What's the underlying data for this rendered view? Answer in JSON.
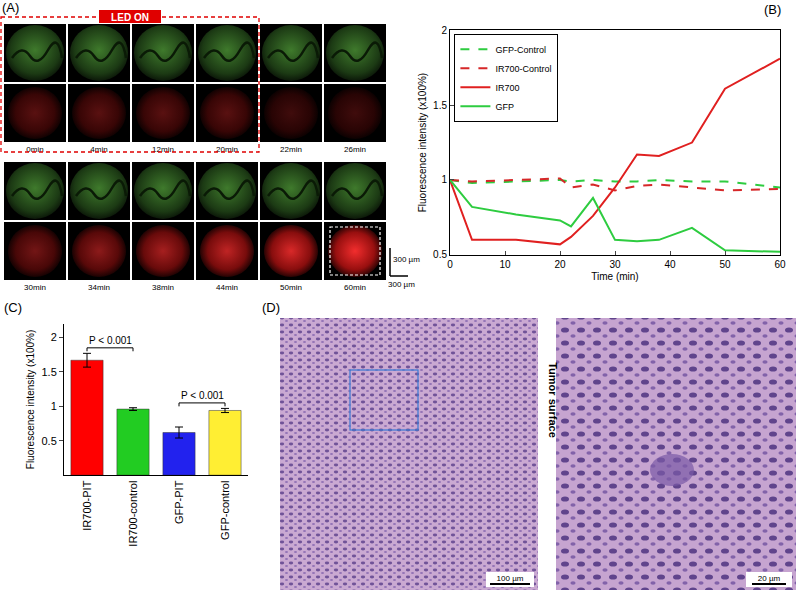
{
  "panel_labels": {
    "A": "(A)",
    "B": "(B)",
    "C": "(C)",
    "D": "(D)"
  },
  "image_panel_A": {
    "banner": "LED ON",
    "rows": [
      [
        "0min",
        "4min",
        "12min",
        "20min",
        "22min",
        "26min"
      ],
      [
        "30min",
        "34min",
        "38min",
        "44min",
        "50min",
        "60min"
      ]
    ],
    "scale_bar": [
      "300 µm",
      "300 µm"
    ]
  },
  "image_panel_D": {
    "side_label": "Tumor surface",
    "scale_bars": [
      "100 µm",
      "20 µm"
    ]
  },
  "chart_data": [
    {
      "type": "line",
      "xlabel": "Time (min)",
      "ylabel": "Fluorescence intensity (x100%)",
      "x": [
        0,
        4,
        12,
        20,
        22,
        26,
        30,
        34,
        38,
        44,
        50,
        60
      ],
      "series": [
        {
          "name": "GFP-Control",
          "color": "#2ecc40",
          "line_style": "dashed",
          "values": [
            1.0,
            0.98,
            0.99,
            1.0,
            0.99,
            1.0,
            0.99,
            0.99,
            1.0,
            0.99,
            0.99,
            0.95
          ]
        },
        {
          "name": "IR700-Control",
          "color": "#d62728",
          "line_style": "dashed",
          "values": [
            1.0,
            0.99,
            1.0,
            1.01,
            0.95,
            0.97,
            0.93,
            0.96,
            0.97,
            0.95,
            0.93,
            0.94
          ]
        },
        {
          "name": "IR700",
          "color": "#e02020",
          "line_style": "solid",
          "values": [
            1.0,
            0.6,
            0.6,
            0.57,
            0.62,
            0.76,
            0.95,
            1.17,
            1.16,
            1.25,
            1.61,
            1.81
          ]
        },
        {
          "name": "GFP",
          "color": "#2ecc40",
          "line_style": "solid",
          "values": [
            1.0,
            0.82,
            0.77,
            0.73,
            0.69,
            0.88,
            0.6,
            0.59,
            0.6,
            0.68,
            0.53,
            0.52
          ]
        }
      ],
      "xlim": [
        0,
        60
      ],
      "xticks": [
        0,
        10,
        20,
        30,
        40,
        50,
        60
      ],
      "ylim": [
        0.5,
        2
      ],
      "yticks": [
        0.5,
        1,
        1.5,
        2
      ],
      "legend": "upper left"
    },
    {
      "type": "bar",
      "ylabel": "Fluorescence intensity (x100%)",
      "categories": [
        "IR700-PIT",
        "IR700-control",
        "GFP-PIT",
        "GFP-control"
      ],
      "values": [
        1.67,
        0.96,
        0.62,
        0.94
      ],
      "errors": [
        0.1,
        0.02,
        0.08,
        0.03
      ],
      "colors": [
        "#ff0000",
        "#22cc22",
        "#2222ee",
        "#ffee33"
      ],
      "ylim": [
        0,
        2.2
      ],
      "yticks": [
        0.5,
        1,
        1.5,
        2
      ],
      "annotations": [
        {
          "text": "P < 0.001",
          "between": [
            "IR700-PIT",
            "IR700-control"
          ]
        },
        {
          "text": "P < 0.001",
          "between": [
            "GFP-PIT",
            "GFP-control"
          ]
        }
      ]
    }
  ]
}
